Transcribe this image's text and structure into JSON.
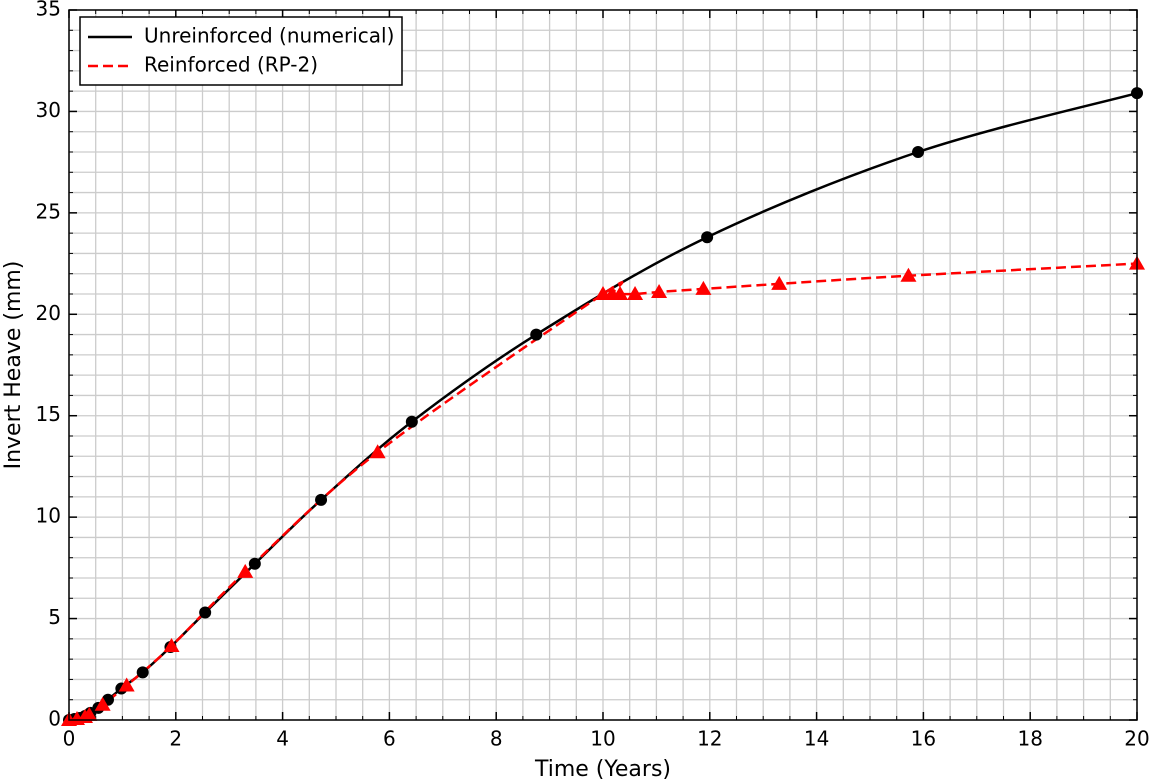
{
  "chart_data": {
    "type": "line",
    "xlabel": "Time (Years)",
    "ylabel": "Invert Heave (mm)",
    "xlim": [
      0,
      20
    ],
    "ylim": [
      0,
      35
    ],
    "xticks": [
      0,
      2,
      4,
      6,
      8,
      10,
      12,
      14,
      16,
      18,
      20
    ],
    "yticks": [
      0,
      5,
      10,
      15,
      20,
      25,
      30,
      35
    ],
    "x_minor_ticks": [
      0.5,
      1,
      1.5,
      2.5,
      3,
      3.5,
      4.5,
      5,
      5.5,
      6.5,
      7,
      7.5,
      8.5,
      9,
      9.5,
      10.5,
      11,
      11.5,
      12.5,
      13,
      13.5,
      14.5,
      15,
      15.5,
      16.5,
      17,
      17.5,
      18.5,
      19,
      19.5
    ],
    "y_minor_ticks": [
      1,
      2,
      3,
      4,
      6,
      7,
      8,
      9,
      11,
      12,
      13,
      14,
      16,
      17,
      18,
      19,
      21,
      22,
      23,
      24,
      26,
      27,
      28,
      29,
      31,
      32,
      33,
      34
    ],
    "grid": true,
    "legend": "upper left",
    "series": [
      {
        "name": "Unreinforced (numerical)",
        "color": "#000000",
        "marker": "circle",
        "dash": false,
        "x": [
          0,
          0.1,
          0.2,
          0.3,
          0.4,
          0.55,
          0.73,
          0.98,
          1.38,
          1.9,
          2.55,
          3.48,
          4.72,
          6.42,
          8.75,
          11.95,
          15.9,
          20
        ],
        "values": [
          0,
          0.05,
          0.1,
          0.2,
          0.35,
          0.6,
          1.0,
          1.55,
          2.35,
          3.6,
          5.3,
          7.7,
          10.85,
          14.7,
          19.0,
          23.8,
          28.0,
          30.9
        ]
      },
      {
        "name": "Reinforced (RP-2)",
        "color": "#ff0000",
        "marker": "triangle",
        "dash": true,
        "x": [
          0,
          0.15,
          0.3,
          0.38,
          0.63,
          1.08,
          1.92,
          3.3,
          5.78,
          10.0,
          10.17,
          10.32,
          10.6,
          11.05,
          11.88,
          13.3,
          15.72,
          20
        ],
        "values": [
          0,
          0.05,
          0.15,
          0.25,
          0.75,
          1.7,
          3.65,
          7.3,
          13.2,
          21.0,
          21.0,
          21.0,
          21.0,
          21.1,
          21.25,
          21.5,
          21.9,
          22.5
        ]
      }
    ]
  }
}
